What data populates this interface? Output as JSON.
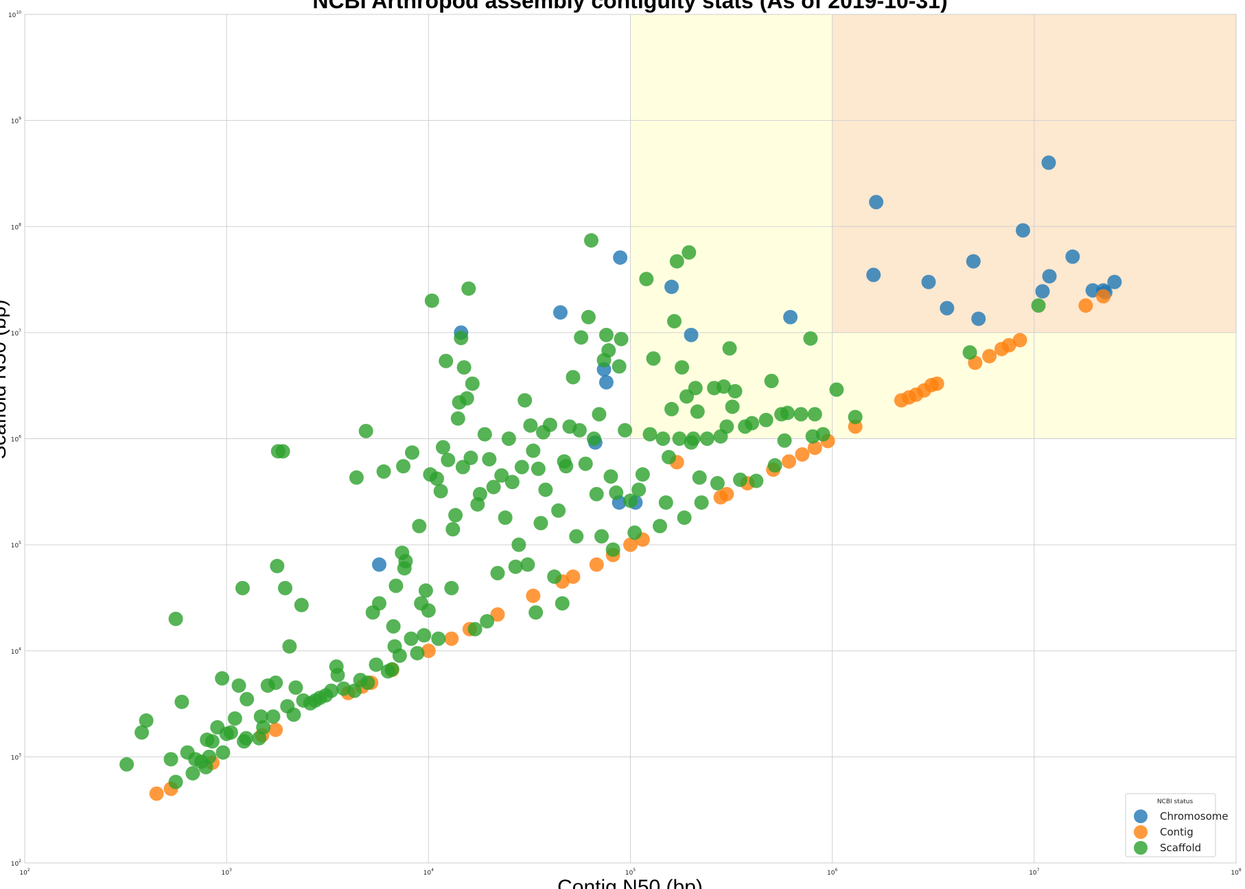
{
  "chart_data": {
    "type": "scatter",
    "title": "NCBI Arthropod assembly contiguity stats (As of 2019-10-31)",
    "xlabel": "Contig N50 (bp)",
    "ylabel": "Scaffold N50 (bp)",
    "xscale": "log",
    "yscale": "log",
    "xlim": [
      100,
      100000000
    ],
    "ylim": [
      100,
      10000000000
    ],
    "grid": true,
    "x_ticks": [
      {
        "mantissa": "10",
        "exponent": "2"
      },
      {
        "mantissa": "10",
        "exponent": "3"
      },
      {
        "mantissa": "10",
        "exponent": "4"
      },
      {
        "mantissa": "10",
        "exponent": "5"
      },
      {
        "mantissa": "10",
        "exponent": "6"
      },
      {
        "mantissa": "10",
        "exponent": "7"
      },
      {
        "mantissa": "10",
        "exponent": "8"
      }
    ],
    "y_ticks": [
      {
        "mantissa": "10",
        "exponent": "2"
      },
      {
        "mantissa": "10",
        "exponent": "3"
      },
      {
        "mantissa": "10",
        "exponent": "4"
      },
      {
        "mantissa": "10",
        "exponent": "5"
      },
      {
        "mantissa": "10",
        "exponent": "6"
      },
      {
        "mantissa": "10",
        "exponent": "7"
      },
      {
        "mantissa": "10",
        "exponent": "8"
      },
      {
        "mantissa": "10",
        "exponent": "9"
      },
      {
        "mantissa": "10",
        "exponent": "10"
      }
    ],
    "shaded_regions": [
      {
        "x": [
          100000,
          1000000
        ],
        "y": [
          1000000,
          10000000000
        ],
        "color": "#ffffe0"
      },
      {
        "x": [
          1000000,
          100000000
        ],
        "y": [
          1000000,
          10000000
        ],
        "color": "#ffffe0"
      },
      {
        "x": [
          1000000,
          100000000
        ],
        "y": [
          10000000,
          10000000000
        ],
        "color": "#fde8d0"
      }
    ],
    "legend": {
      "title": "NCBI status",
      "placement": "lower right",
      "entries": [
        "Chromosome",
        "Contig",
        "Scaffold"
      ]
    },
    "series": [
      {
        "name": "Chromosome",
        "color": "#1f77b4",
        "points": [
          [
            11800000,
            400000000
          ],
          [
            1650000,
            170000000
          ],
          [
            8800000,
            92000000
          ],
          [
            89000,
            51000000
          ],
          [
            15500000,
            52000000
          ],
          [
            5000000,
            47000000
          ],
          [
            1600000,
            35000000
          ],
          [
            11900000,
            34000000
          ],
          [
            3000000,
            30000000
          ],
          [
            25000000,
            30000000
          ],
          [
            160000,
            27000000
          ],
          [
            19500000,
            25000000
          ],
          [
            22000000,
            25000000
          ],
          [
            22500000,
            24000000
          ],
          [
            11000000,
            24500000
          ],
          [
            3700000,
            17000000
          ],
          [
            45000,
            15500000
          ],
          [
            5300000,
            13500000
          ],
          [
            620000,
            14000000
          ],
          [
            14500,
            10000000
          ],
          [
            200000,
            9500000
          ],
          [
            74000,
            4500000
          ],
          [
            76000,
            3400000
          ],
          [
            67000,
            920000
          ],
          [
            88000,
            250000
          ],
          [
            106000,
            250000
          ],
          [
            5700,
            65000
          ]
        ]
      },
      {
        "name": "Contig",
        "color": "#ff7f0e",
        "points": [
          [
            450,
            450
          ],
          [
            530,
            500
          ],
          [
            850,
            880
          ],
          [
            1500,
            1600
          ],
          [
            1750,
            1800
          ],
          [
            4000,
            4000
          ],
          [
            4700,
            4600
          ],
          [
            5200,
            5000
          ],
          [
            6600,
            6600
          ],
          [
            10000,
            10000
          ],
          [
            13000,
            13000
          ],
          [
            16000,
            16000
          ],
          [
            22000,
            22000
          ],
          [
            33000,
            33000
          ],
          [
            46000,
            45000
          ],
          [
            52000,
            50000
          ],
          [
            68000,
            65000
          ],
          [
            82000,
            80000
          ],
          [
            100000,
            100000
          ],
          [
            115000,
            112000
          ],
          [
            170000,
            600000
          ],
          [
            280000,
            280000
          ],
          [
            300000,
            300000
          ],
          [
            380000,
            380000
          ],
          [
            510000,
            510000
          ],
          [
            610000,
            610000
          ],
          [
            710000,
            710000
          ],
          [
            820000,
            820000
          ],
          [
            950000,
            950000
          ],
          [
            1300000,
            1300000
          ],
          [
            2200000,
            2300000
          ],
          [
            2400000,
            2450000
          ],
          [
            2600000,
            2600000
          ],
          [
            2850000,
            2850000
          ],
          [
            3100000,
            3200000
          ],
          [
            3300000,
            3300000
          ],
          [
            5100000,
            5200000
          ],
          [
            6000000,
            6000000
          ],
          [
            6900000,
            7000000
          ],
          [
            7500000,
            7600000
          ],
          [
            8500000,
            8500000
          ],
          [
            18000000,
            18000000
          ],
          [
            22000000,
            22000000
          ]
        ]
      },
      {
        "name": "Scaffold",
        "color": "#2ca02c",
        "points": [
          [
            320,
            850
          ],
          [
            380,
            1700
          ],
          [
            400,
            2200
          ],
          [
            530,
            950
          ],
          [
            560,
            580
          ],
          [
            560,
            20000
          ],
          [
            600,
            3300
          ],
          [
            640,
            1100
          ],
          [
            680,
            700
          ],
          [
            700,
            950
          ],
          [
            750,
            900
          ],
          [
            790,
            800
          ],
          [
            800,
            1450
          ],
          [
            820,
            1000
          ],
          [
            850,
            1400
          ],
          [
            900,
            1900
          ],
          [
            950,
            5500
          ],
          [
            960,
            1100
          ],
          [
            1000,
            1650
          ],
          [
            1050,
            1700
          ],
          [
            1100,
            2300
          ],
          [
            1150,
            4700
          ],
          [
            1200,
            39000
          ],
          [
            1220,
            1400
          ],
          [
            1250,
            1500
          ],
          [
            1260,
            3500
          ],
          [
            1450,
            1500
          ],
          [
            1480,
            2400
          ],
          [
            1520,
            1900
          ],
          [
            1600,
            4700
          ],
          [
            1700,
            2400
          ],
          [
            1750,
            5000
          ],
          [
            1780,
            63000
          ],
          [
            1800,
            760000
          ],
          [
            1900,
            760000
          ],
          [
            1950,
            39000
          ],
          [
            2000,
            3000
          ],
          [
            2050,
            11000
          ],
          [
            2150,
            2500
          ],
          [
            2200,
            4500
          ],
          [
            2350,
            27000
          ],
          [
            2400,
            3400
          ],
          [
            2600,
            3200
          ],
          [
            2750,
            3400
          ],
          [
            2900,
            3600
          ],
          [
            3100,
            3800
          ],
          [
            3300,
            4200
          ],
          [
            3500,
            7100
          ],
          [
            3550,
            5900
          ],
          [
            3800,
            4400
          ],
          [
            4300,
            4200
          ],
          [
            4400,
            430000
          ],
          [
            4600,
            5300
          ],
          [
            4900,
            1180000
          ],
          [
            5000,
            5000
          ],
          [
            5300,
            23000
          ],
          [
            5500,
            7400
          ],
          [
            5700,
            28000
          ],
          [
            6000,
            490000
          ],
          [
            6300,
            6400
          ],
          [
            6600,
            6700
          ],
          [
            6700,
            17000
          ],
          [
            6800,
            11000
          ],
          [
            6900,
            41000
          ],
          [
            7200,
            9000
          ],
          [
            7400,
            84000
          ],
          [
            7500,
            550000
          ],
          [
            7600,
            60000
          ],
          [
            7700,
            70000
          ],
          [
            8200,
            13000
          ],
          [
            8300,
            740000
          ],
          [
            8800,
            9500
          ],
          [
            9000,
            150000
          ],
          [
            9200,
            28000
          ],
          [
            9500,
            14000
          ],
          [
            9700,
            37000
          ],
          [
            10000,
            24000
          ],
          [
            10200,
            460000
          ],
          [
            10400,
            20000000
          ],
          [
            11000,
            420000
          ],
          [
            11200,
            13000
          ],
          [
            11500,
            320000
          ],
          [
            11800,
            830000
          ],
          [
            12200,
            5400000
          ],
          [
            12500,
            630000
          ],
          [
            13000,
            39000
          ],
          [
            13200,
            140000
          ],
          [
            13600,
            190000
          ],
          [
            14000,
            1550000
          ],
          [
            14200,
            2200000
          ],
          [
            14500,
            8900000
          ],
          [
            14800,
            540000
          ],
          [
            15000,
            4700000
          ],
          [
            15500,
            2400000
          ],
          [
            15800,
            26000000
          ],
          [
            16200,
            660000
          ],
          [
            16500,
            3300000
          ],
          [
            17000,
            16000
          ],
          [
            17500,
            240000
          ],
          [
            18000,
            300000
          ],
          [
            19000,
            1100000
          ],
          [
            19500,
            19000
          ],
          [
            20000,
            640000
          ],
          [
            21000,
            350000
          ],
          [
            22000,
            54000
          ],
          [
            23000,
            450000
          ],
          [
            24000,
            180000
          ],
          [
            25000,
            1000000
          ],
          [
            26000,
            390000
          ],
          [
            27000,
            62000
          ],
          [
            28000,
            100000
          ],
          [
            29000,
            540000
          ],
          [
            30000,
            2300000
          ],
          [
            31000,
            65000
          ],
          [
            32000,
            1330000
          ],
          [
            33000,
            770000
          ],
          [
            34000,
            23000
          ],
          [
            35000,
            520000
          ],
          [
            36000,
            160000
          ],
          [
            37000,
            1150000
          ],
          [
            38000,
            330000
          ],
          [
            40000,
            1350000
          ],
          [
            42000,
            50000
          ],
          [
            44000,
            210000
          ],
          [
            46000,
            28000
          ],
          [
            47000,
            610000
          ],
          [
            48000,
            550000
          ],
          [
            50000,
            1300000
          ],
          [
            52000,
            3800000
          ],
          [
            54000,
            120000
          ],
          [
            56000,
            1200000
          ],
          [
            57000,
            9000000
          ],
          [
            60000,
            580000
          ],
          [
            62000,
            14000000
          ],
          [
            64000,
            74000000
          ],
          [
            66000,
            1000000
          ],
          [
            68000,
            300000
          ],
          [
            70000,
            1700000
          ],
          [
            72000,
            120000
          ],
          [
            74000,
            5500000
          ],
          [
            76000,
            9500000
          ],
          [
            78000,
            6800000
          ],
          [
            80000,
            440000
          ],
          [
            82000,
            90000
          ],
          [
            85000,
            310000
          ],
          [
            88000,
            4800000
          ],
          [
            90000,
            8700000
          ],
          [
            94000,
            1200000
          ],
          [
            100000,
            260000
          ],
          [
            105000,
            130000
          ],
          [
            110000,
            330000
          ],
          [
            115000,
            460000
          ],
          [
            120000,
            32000000
          ],
          [
            125000,
            1100000
          ],
          [
            130000,
            5700000
          ],
          [
            140000,
            150000
          ],
          [
            145000,
            1000000
          ],
          [
            150000,
            250000
          ],
          [
            155000,
            670000
          ],
          [
            160000,
            1900000
          ],
          [
            165000,
            12800000
          ],
          [
            170000,
            47000000
          ],
          [
            175000,
            1000000
          ],
          [
            180000,
            4700000
          ],
          [
            185000,
            180000
          ],
          [
            190000,
            2500000
          ],
          [
            195000,
            57000000
          ],
          [
            200000,
            920000
          ],
          [
            205000,
            1000000
          ],
          [
            210000,
            3000000
          ],
          [
            215000,
            1800000
          ],
          [
            220000,
            430000
          ],
          [
            225000,
            250000
          ],
          [
            240000,
            1000000
          ],
          [
            260000,
            3000000
          ],
          [
            270000,
            380000
          ],
          [
            280000,
            1050000
          ],
          [
            290000,
            3100000
          ],
          [
            300000,
            1300000
          ],
          [
            310000,
            7100000
          ],
          [
            320000,
            2000000
          ],
          [
            330000,
            2800000
          ],
          [
            350000,
            410000
          ],
          [
            370000,
            1300000
          ],
          [
            400000,
            1400000
          ],
          [
            420000,
            400000
          ],
          [
            470000,
            1500000
          ],
          [
            500000,
            3500000
          ],
          [
            520000,
            560000
          ],
          [
            560000,
            1700000
          ],
          [
            580000,
            960000
          ],
          [
            600000,
            1750000
          ],
          [
            700000,
            1700000
          ],
          [
            780000,
            8800000
          ],
          [
            800000,
            1050000
          ],
          [
            820000,
            1700000
          ],
          [
            900000,
            1100000
          ],
          [
            1050000,
            2900000
          ],
          [
            1300000,
            1600000
          ],
          [
            4800000,
            6500000
          ],
          [
            10500000,
            18000000
          ]
        ]
      }
    ]
  }
}
